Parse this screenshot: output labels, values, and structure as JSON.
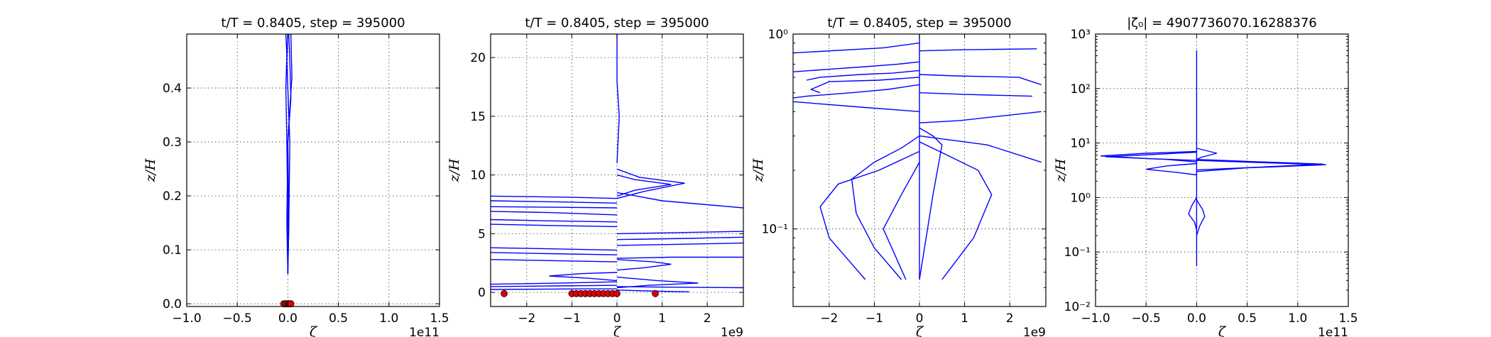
{
  "chart_data": [
    {
      "type": "line",
      "title": "t/T = 0.8405, step = 395000",
      "xlabel": "ζ",
      "ylabel": "z/H",
      "x_offset_label": "1e11",
      "xlim": [
        -1.0,
        1.5
      ],
      "ylim": [
        -0.005,
        0.5
      ],
      "yscale": "linear",
      "xticks": [
        -1.0,
        -0.5,
        0.0,
        0.5,
        1.0,
        1.5
      ],
      "xtick_labels": [
        "−1.0",
        "−0.5",
        "0.0",
        "0.5",
        "1.0",
        "1.5"
      ],
      "yticks": [
        0.0,
        0.1,
        0.2,
        0.3,
        0.4
      ],
      "ytick_labels": [
        "0.0",
        "0.1",
        "0.2",
        "0.3",
        "0.4"
      ],
      "grid": true,
      "series": [
        {
          "x": [
            0.0,
            0.01,
            0.02,
            0.0,
            -0.01,
            0.0
          ],
          "y": [
            0.055,
            0.15,
            0.3,
            0.4,
            0.45,
            0.5
          ]
        },
        {
          "x": [
            0.0,
            -0.01,
            0.0,
            0.03,
            0.02,
            0.01
          ],
          "y": [
            0.055,
            0.15,
            0.3,
            0.38,
            0.45,
            0.5
          ]
        },
        {
          "x": [
            0.0,
            0.01,
            0.0,
            0.02,
            0.04,
            0.03
          ],
          "y": [
            0.055,
            0.15,
            0.3,
            0.36,
            0.42,
            0.5
          ]
        },
        {
          "x": [
            0.0,
            0.0,
            -0.01,
            -0.02,
            -0.01,
            -0.02
          ],
          "y": [
            0.055,
            0.15,
            0.3,
            0.4,
            0.46,
            0.5
          ]
        }
      ],
      "markers": [
        {
          "x": -0.04,
          "y": 0.0
        },
        {
          "x": -0.02,
          "y": 0.0
        },
        {
          "x": 0.0,
          "y": 0.0
        },
        {
          "x": 0.01,
          "y": 0.0
        },
        {
          "x": 0.02,
          "y": 0.0
        },
        {
          "x": 0.03,
          "y": 0.0
        }
      ]
    },
    {
      "type": "line",
      "title": "t/T = 0.8405, step = 395000",
      "xlabel": "ζ",
      "ylabel": "z/H",
      "x_offset_label": "1e9",
      "xlim": [
        -2.8,
        2.8
      ],
      "ylim": [
        -1.2,
        22
      ],
      "yscale": "linear",
      "xticks": [
        -2,
        -1,
        0,
        1,
        2
      ],
      "xtick_labels": [
        "−2",
        "−1",
        "0",
        "1",
        "2"
      ],
      "yticks": [
        0,
        5,
        10,
        15,
        20
      ],
      "ytick_labels": [
        "0",
        "5",
        "10",
        "15",
        "20"
      ],
      "grid": true,
      "series": [
        {
          "x": [
            0.0,
            0.05,
            0.0,
            0.0
          ],
          "y": [
            11.0,
            15.0,
            18.0,
            22.0
          ]
        },
        {
          "x": [
            0.0,
            0.4,
            1.2,
            0.4,
            0.0
          ],
          "y": [
            10.0,
            9.6,
            9.2,
            8.7,
            8.2
          ]
        },
        {
          "x": [
            0.0,
            0.5,
            1.5,
            0.6,
            0.0
          ],
          "y": [
            10.5,
            9.8,
            9.3,
            8.6,
            8.0
          ]
        },
        {
          "x": [
            0.0,
            0.3,
            1.0,
            2.8
          ],
          "y": [
            8.5,
            8.3,
            7.8,
            7.2
          ]
        },
        {
          "x": [
            0.0,
            -1.0,
            -2.8
          ],
          "y": [
            8.0,
            8.1,
            8.2
          ]
        },
        {
          "x": [
            0.0,
            -1.2,
            -2.8
          ],
          "y": [
            7.6,
            7.7,
            7.8
          ]
        },
        {
          "x": [
            0.0,
            -1.4,
            -2.8
          ],
          "y": [
            7.2,
            7.25,
            7.3
          ]
        },
        {
          "x": [
            0.0,
            -1.5,
            -2.8
          ],
          "y": [
            6.6,
            6.8,
            6.9
          ]
        },
        {
          "x": [
            0.0,
            -1.6,
            -2.8
          ],
          "y": [
            6.0,
            6.1,
            6.2
          ]
        },
        {
          "x": [
            0.0,
            -1.5,
            -2.8
          ],
          "y": [
            5.6,
            5.7,
            5.8
          ]
        },
        {
          "x": [
            0.0,
            1.5,
            2.8
          ],
          "y": [
            5.0,
            5.1,
            5.2
          ]
        },
        {
          "x": [
            0.0,
            1.6,
            2.8
          ],
          "y": [
            4.5,
            4.6,
            4.7
          ]
        },
        {
          "x": [
            0.0,
            1.4,
            2.8
          ],
          "y": [
            4.0,
            4.1,
            4.2
          ]
        },
        {
          "x": [
            0.0,
            -1.3,
            -2.8
          ],
          "y": [
            3.6,
            3.7,
            3.8
          ]
        },
        {
          "x": [
            0.0,
            -1.5,
            -2.8
          ],
          "y": [
            3.2,
            3.3,
            3.4
          ]
        },
        {
          "x": [
            0.0,
            1.2,
            2.8
          ],
          "y": [
            2.9,
            3.0,
            3.0
          ]
        },
        {
          "x": [
            0.0,
            -1.4,
            -2.8
          ],
          "y": [
            2.6,
            2.7,
            2.8
          ]
        },
        {
          "x": [
            0.0,
            0.8,
            1.2,
            0.6,
            0.0
          ],
          "y": [
            2.8,
            2.6,
            2.4,
            2.1,
            1.9
          ]
        },
        {
          "x": [
            0.0,
            -0.8,
            -1.5,
            -0.6,
            0.0
          ],
          "y": [
            1.7,
            1.6,
            1.4,
            1.2,
            1.0
          ]
        },
        {
          "x": [
            0.0,
            0.9,
            1.8,
            0.7,
            0.0
          ],
          "y": [
            1.3,
            1.0,
            0.8,
            0.6,
            0.4
          ]
        },
        {
          "x": [
            0.0,
            -1.2,
            -2.8
          ],
          "y": [
            0.9,
            0.8,
            0.7
          ]
        },
        {
          "x": [
            0.0,
            -1.4,
            -2.8
          ],
          "y": [
            0.6,
            0.55,
            0.5
          ]
        },
        {
          "x": [
            0.0,
            1.0,
            2.8
          ],
          "y": [
            0.5,
            0.45,
            0.4
          ]
        },
        {
          "x": [
            0.0,
            -0.8,
            -2.8
          ],
          "y": [
            0.3,
            0.3,
            0.25
          ]
        },
        {
          "x": [
            0.0,
            0.9,
            1.6
          ],
          "y": [
            0.2,
            0.1,
            0.05
          ]
        }
      ],
      "markers": [
        {
          "x": -2.5,
          "y": -0.1
        },
        {
          "x": -1.0,
          "y": -0.1
        },
        {
          "x": -0.9,
          "y": -0.1
        },
        {
          "x": -0.8,
          "y": -0.1
        },
        {
          "x": -0.7,
          "y": -0.1
        },
        {
          "x": -0.6,
          "y": -0.1
        },
        {
          "x": -0.5,
          "y": -0.1
        },
        {
          "x": -0.4,
          "y": -0.1
        },
        {
          "x": -0.3,
          "y": -0.1
        },
        {
          "x": -0.2,
          "y": -0.1
        },
        {
          "x": -0.1,
          "y": -0.1
        },
        {
          "x": 0.0,
          "y": -0.1
        },
        {
          "x": 0.85,
          "y": -0.1
        }
      ]
    },
    {
      "type": "line",
      "title": "t/T = 0.8405, step = 395000",
      "xlabel": "ζ",
      "ylabel": "z/H",
      "x_offset_label": "1e9",
      "xlim": [
        -2.8,
        2.8
      ],
      "ylim": [
        0.04,
        1.0
      ],
      "yscale": "log",
      "xticks": [
        -2,
        -1,
        0,
        1,
        2
      ],
      "xtick_labels": [
        "−2",
        "−1",
        "0",
        "1",
        "2"
      ],
      "yticks": [
        0.1,
        1.0
      ],
      "ytick_labels": [
        "10⁻¹",
        "10⁰"
      ],
      "grid": true,
      "series": [
        {
          "x": [
            0.0,
            0.0
          ],
          "y": [
            0.055,
            1.0
          ]
        },
        {
          "x": [
            0.0,
            -0.5,
            -1.2,
            -2.0,
            -2.8
          ],
          "y": [
            0.72,
            0.7,
            0.68,
            0.66,
            0.64
          ]
        },
        {
          "x": [
            0.0,
            -0.6,
            -1.3,
            -2.2,
            -2.5
          ],
          "y": [
            0.65,
            0.63,
            0.62,
            0.6,
            0.58
          ]
        },
        {
          "x": [
            0.0,
            -0.9,
            -2.0,
            -2.4,
            -2.2
          ],
          "y": [
            0.6,
            0.58,
            0.57,
            0.52,
            0.5
          ]
        },
        {
          "x": [
            0.0,
            -0.7,
            -1.5,
            -2.5,
            -2.8
          ],
          "y": [
            0.55,
            0.52,
            0.5,
            0.48,
            0.47
          ]
        },
        {
          "x": [
            0.0,
            0.8,
            2.2,
            2.7
          ],
          "y": [
            0.62,
            0.61,
            0.6,
            0.55
          ]
        },
        {
          "x": [
            0.0,
            1.0,
            2.5
          ],
          "y": [
            0.5,
            0.49,
            0.48
          ]
        },
        {
          "x": [
            0.0,
            0.9,
            2.6
          ],
          "y": [
            0.82,
            0.83,
            0.84
          ]
        },
        {
          "x": [
            0.0,
            -0.8,
            -2.8
          ],
          "y": [
            0.9,
            0.85,
            0.8
          ]
        },
        {
          "x": [
            0.0,
            -1.2,
            -2.8
          ],
          "y": [
            0.4,
            0.42,
            0.45
          ]
        },
        {
          "x": [
            0.0,
            0.9,
            2.7
          ],
          "y": [
            0.35,
            0.36,
            0.4
          ]
        },
        {
          "x": [
            0.0,
            0.3,
            0.5,
            0.3,
            0.0
          ],
          "y": [
            0.33,
            0.3,
            0.27,
            0.15,
            0.055
          ]
        },
        {
          "x": [
            0.0,
            -0.4,
            -1.0,
            -1.5,
            -1.4,
            -1.0,
            -0.4
          ],
          "y": [
            0.3,
            0.26,
            0.22,
            0.18,
            0.12,
            0.08,
            0.055
          ]
        },
        {
          "x": [
            0.0,
            0.6,
            1.3,
            1.6,
            1.2,
            0.5
          ],
          "y": [
            0.28,
            0.24,
            0.2,
            0.15,
            0.09,
            0.055
          ]
        },
        {
          "x": [
            0.0,
            -0.9,
            -1.8,
            -2.2,
            -2.0,
            -1.2
          ],
          "y": [
            0.25,
            0.2,
            0.17,
            0.13,
            0.09,
            0.055
          ]
        },
        {
          "x": [
            0.0,
            1.5,
            2.7
          ],
          "y": [
            0.3,
            0.27,
            0.22
          ]
        },
        {
          "x": [
            0.0,
            -0.4,
            -0.8,
            -0.3
          ],
          "y": [
            0.22,
            0.15,
            0.1,
            0.055
          ]
        }
      ]
    },
    {
      "type": "line",
      "title": "|ζ₀| = 4907736070.16288376",
      "xlabel": "ζ",
      "ylabel": "z/H",
      "x_offset_label": "1e11",
      "xlim": [
        -1.0,
        1.5
      ],
      "ylim": [
        0.01,
        1000
      ],
      "yscale": "log",
      "xticks": [
        -1.0,
        -0.5,
        0.0,
        0.5,
        1.0,
        1.5
      ],
      "xtick_labels": [
        "−1.0",
        "−0.5",
        "0.0",
        "0.5",
        "1.0",
        "1.5"
      ],
      "yticks": [
        0.01,
        0.1,
        1,
        10,
        100,
        1000
      ],
      "ytick_labels": [
        "10⁻²",
        "10⁻¹",
        "10⁰",
        "10¹",
        "10²",
        "10³"
      ],
      "grid": true,
      "series": [
        {
          "x": [
            0.0,
            0.0
          ],
          "y": [
            0.055,
            500
          ]
        },
        {
          "x": [
            0.0,
            -0.5,
            -0.95,
            -0.5,
            0.0
          ],
          "y": [
            7.0,
            6.5,
            5.8,
            5.2,
            4.8
          ]
        },
        {
          "x": [
            0.0,
            -0.4,
            -0.9,
            -0.3,
            0.0
          ],
          "y": [
            6.8,
            6.2,
            5.6,
            5.0,
            4.5
          ]
        },
        {
          "x": [
            0.0,
            0.5,
            1.25,
            0.6,
            0.0
          ],
          "y": [
            5.0,
            4.6,
            4.1,
            3.6,
            3.2
          ]
        },
        {
          "x": [
            0.0,
            0.6,
            1.28,
            0.5,
            0.0
          ],
          "y": [
            4.8,
            4.4,
            4.0,
            3.5,
            3.0
          ]
        },
        {
          "x": [
            0.0,
            -0.3,
            -0.5,
            -0.2,
            0.0
          ],
          "y": [
            4.2,
            3.8,
            3.3,
            2.9,
            2.6
          ]
        },
        {
          "x": [
            0.0,
            0.2,
            0.05,
            0.0
          ],
          "y": [
            8.0,
            6.5,
            5.5,
            5.0
          ]
        },
        {
          "x": [
            0.0,
            -0.05,
            -0.08,
            -0.02,
            0.0
          ],
          "y": [
            1.0,
            0.7,
            0.5,
            0.35,
            0.25
          ]
        },
        {
          "x": [
            0.0,
            0.06,
            0.08,
            0.03,
            0.0
          ],
          "y": [
            0.9,
            0.6,
            0.45,
            0.3,
            0.2
          ]
        }
      ]
    }
  ]
}
